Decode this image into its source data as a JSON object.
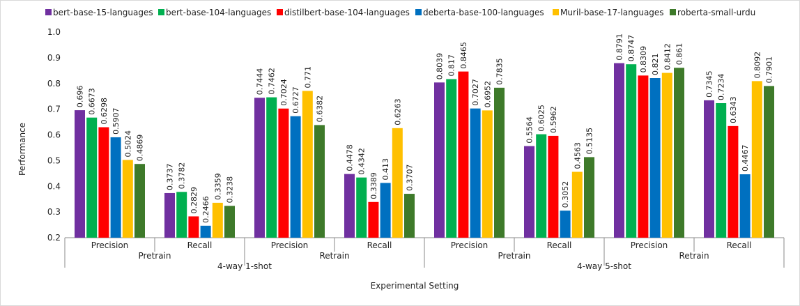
{
  "chart_data": {
    "type": "bar",
    "xlabel": "Experimental Setting",
    "ylabel": "Performance",
    "ylim": [
      0.2,
      1.0
    ],
    "yticks": [
      "0.2",
      "0.3",
      "0.4",
      "0.5",
      "0.6",
      "0.7",
      "0.8",
      "0.9",
      "1.0"
    ],
    "legend_position": "top",
    "grid": false,
    "categories": [
      "Precision",
      "Recall",
      "Precision",
      "Recall",
      "Precision",
      "Recall",
      "Precision",
      "Recall"
    ],
    "group_level2": [
      "Pretrain",
      "Retrain",
      "Pretrain",
      "Retrain"
    ],
    "group_level3": [
      "4-way 1-shot",
      "4-way 5-shot"
    ],
    "series": [
      {
        "name": "bert-base-15-languages",
        "color": "#7030a0",
        "values": [
          0.696,
          0.3737,
          0.7444,
          0.4478,
          0.8039,
          0.5564,
          0.8791,
          0.7345
        ],
        "labels": [
          "0.696",
          "0.3737",
          "0.7444",
          "0.4478",
          "0.8039",
          "0.5564",
          "0.8791",
          "0.7345"
        ]
      },
      {
        "name": "bert-base-104-languages",
        "color": "#00b050",
        "values": [
          0.6673,
          0.3782,
          0.7462,
          0.4342,
          0.817,
          0.6025,
          0.8747,
          0.7234
        ],
        "labels": [
          "0.6673",
          "0.3782",
          "0.7462",
          "0.4342",
          "0.817",
          "0.6025",
          "0.8747",
          "0.7234"
        ]
      },
      {
        "name": "distilbert-base-104-languages",
        "color": "#ff0000",
        "values": [
          0.6298,
          0.2829,
          0.7024,
          0.3389,
          0.8465,
          0.5962,
          0.8309,
          0.6343
        ],
        "labels": [
          "0.6298",
          "0.2829",
          "0.7024",
          "0.3389",
          "0.8465",
          "0.5962",
          "0.8309",
          "0.6343"
        ]
      },
      {
        "name": "deberta-base-100-languages",
        "color": "#0070c0",
        "values": [
          0.5907,
          0.2466,
          0.6727,
          0.413,
          0.7027,
          0.3052,
          0.821,
          0.4467
        ],
        "labels": [
          "0.5907",
          "0.2466",
          "0.6727",
          "0.413",
          "0.7027",
          "0.3052",
          "0.821",
          "0.4467"
        ]
      },
      {
        "name": "Muril-base-17-languages",
        "color": "#ffc000",
        "values": [
          0.5024,
          0.3359,
          0.771,
          0.6263,
          0.6952,
          0.4563,
          0.8412,
          0.8092
        ],
        "labels": [
          "0.5024",
          "0.3359",
          "0.771",
          "0.6263",
          "0.6952",
          "0.4563",
          "0.8412",
          "0.8092"
        ]
      },
      {
        "name": "roberta-small-urdu",
        "color": "#3e7a2a",
        "values": [
          0.4869,
          0.3238,
          0.6382,
          0.3707,
          0.7835,
          0.5135,
          0.861,
          0.7901
        ],
        "labels": [
          "0.4869",
          "0.3238",
          "0.6382",
          "0.3707",
          "0.7835",
          "0.5135",
          "0.861",
          "0.7901"
        ]
      }
    ]
  }
}
